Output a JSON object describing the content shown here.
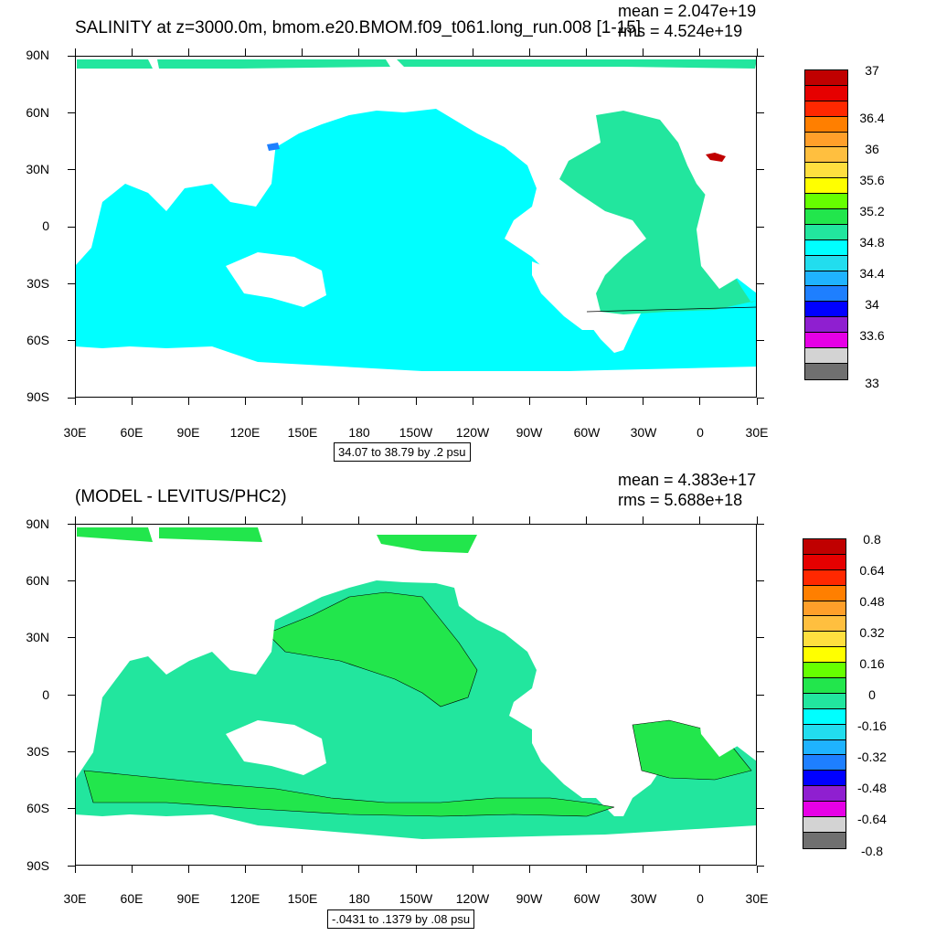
{
  "panel1": {
    "title": "SALINITY at z=3000.0m, bmom.e20.BMOM.f09_t061.long_run.008 [1-15]",
    "mean": "mean = 2.047e+19",
    "rms": "rms = 4.524e+19",
    "contour_info": "34.07 to 38.79 by .2 psu",
    "colorbar_labels": [
      "37",
      "36.4",
      "36",
      "35.6",
      "35.2",
      "34.8",
      "34.4",
      "34",
      "33.6",
      "33"
    ]
  },
  "panel2": {
    "title": "(MODEL - LEVITUS/PHC2)",
    "mean": "mean = 4.383e+17",
    "rms": "rms = 5.688e+18",
    "contour_info": "-.0431 to .1379 by .08 psu",
    "colorbar_labels": [
      "0.8",
      "0.64",
      "0.48",
      "0.32",
      "0.16",
      "0",
      "-0.16",
      "-0.32",
      "-0.48",
      "-0.64",
      "-0.8"
    ]
  },
  "axes": {
    "lat_labels": [
      "90N",
      "60N",
      "30N",
      "0",
      "30S",
      "60S",
      "90S"
    ],
    "lon_labels": [
      "30E",
      "60E",
      "90E",
      "120E",
      "150E",
      "180",
      "150W",
      "120W",
      "90W",
      "60W",
      "30W",
      "0",
      "30E"
    ]
  },
  "colors": {
    "colorbar": [
      "#c00000",
      "#e60000",
      "#ff2800",
      "#ff7f00",
      "#ff9f2a",
      "#ffbf3f",
      "#ffdf3f",
      "#ffff00",
      "#66ff00",
      "#22e64c",
      "#22e69e",
      "#00ffff",
      "#22ddee",
      "#1fb3ff",
      "#1e7fff",
      "#0000ff",
      "#8f1fd0",
      "#e600e6",
      "#d3d3d3",
      "#707070"
    ],
    "ocean_panel1": "#00ffff",
    "atlantic_panel1": "#22e69e",
    "ocean_panel2": "#22e69e",
    "ocean_panel2_pos": "#22e64c"
  }
}
